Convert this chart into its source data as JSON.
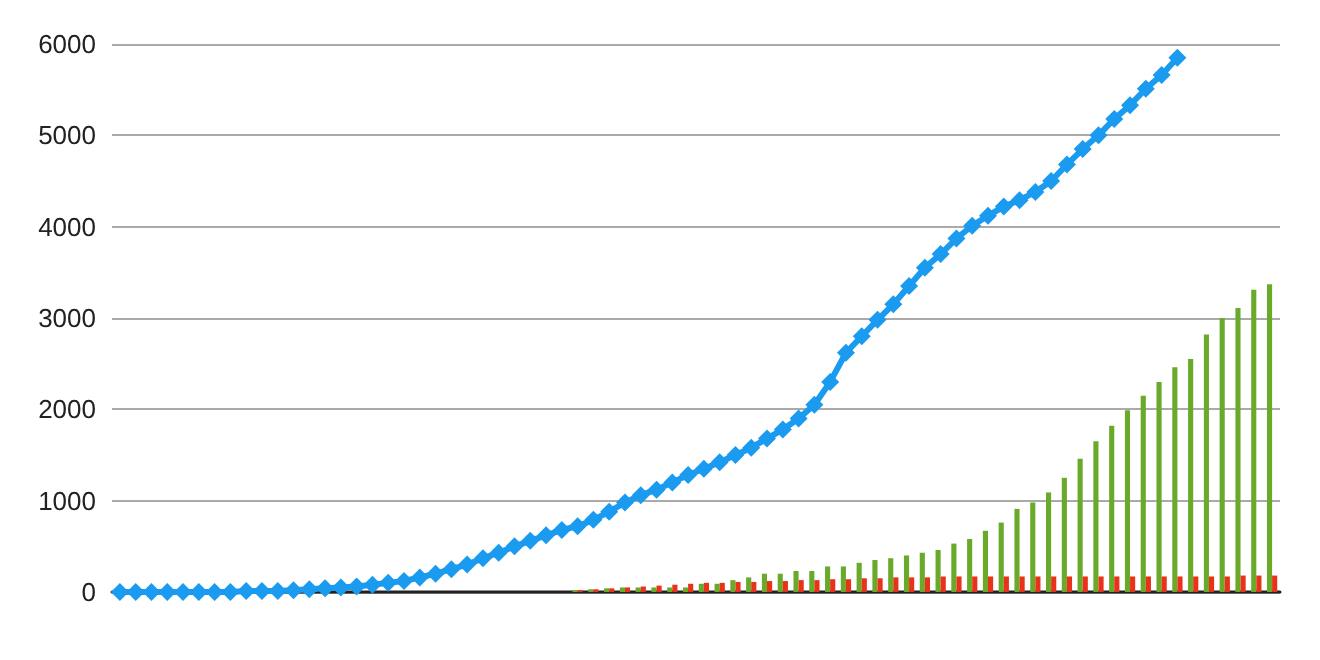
{
  "chart_data": {
    "type": "bar",
    "categories": [
      null,
      null,
      null,
      null,
      null,
      null,
      null,
      null,
      null,
      null,
      null,
      null,
      null,
      null,
      null,
      null,
      null,
      null,
      null,
      null,
      null,
      null,
      null,
      null,
      null,
      null,
      null,
      null,
      null,
      null,
      null,
      null,
      null,
      null,
      null,
      null,
      null,
      null,
      null,
      null,
      null,
      null,
      null,
      null,
      null,
      null,
      null,
      null,
      null,
      null,
      null,
      null,
      null,
      null,
      null,
      null,
      null,
      null,
      null,
      null,
      null,
      null,
      null,
      null,
      null,
      null,
      null,
      null,
      null,
      null,
      null,
      null,
      null,
      null
    ],
    "series": [
      {
        "color": "#6aaa2a",
        "values": [
          0,
          0,
          0,
          0,
          0,
          0,
          0,
          0,
          0,
          0,
          0,
          0,
          0,
          0,
          0,
          0,
          0,
          0,
          0,
          0,
          0,
          0,
          0,
          0,
          0,
          0,
          0,
          0,
          0,
          20,
          30,
          40,
          50,
          50,
          50,
          50,
          50,
          90,
          90,
          130,
          160,
          200,
          200,
          230,
          230,
          280,
          280,
          320,
          350,
          370,
          400,
          430,
          460,
          530,
          580,
          670,
          760,
          910,
          980,
          1090,
          1250,
          1460,
          1650,
          1820,
          1990,
          2150,
          2300,
          2460,
          2550,
          2820,
          3000,
          3110,
          3310,
          3370
        ]
      },
      {
        "color": "#e8321a",
        "values": [
          0,
          0,
          0,
          0,
          0,
          0,
          0,
          0,
          0,
          0,
          0,
          0,
          0,
          0,
          0,
          0,
          0,
          0,
          0,
          0,
          0,
          0,
          0,
          0,
          0,
          0,
          0,
          0,
          0,
          20,
          30,
          40,
          50,
          60,
          70,
          80,
          90,
          100,
          100,
          110,
          110,
          120,
          120,
          130,
          130,
          140,
          140,
          150,
          150,
          160,
          160,
          160,
          170,
          170,
          170,
          170,
          170,
          170,
          170,
          170,
          170,
          170,
          170,
          170,
          170,
          170,
          170,
          170,
          170,
          170,
          170,
          180,
          180,
          180
        ]
      },
      {
        "type": "line",
        "color": "#1a9bf0",
        "marker": "diamond",
        "values": [
          0,
          0,
          0,
          0,
          0,
          0,
          0,
          0,
          10,
          10,
          10,
          20,
          30,
          40,
          50,
          60,
          80,
          100,
          120,
          160,
          200,
          250,
          300,
          370,
          430,
          500,
          560,
          620,
          680,
          720,
          790,
          880,
          980,
          1060,
          1120,
          1200,
          1280,
          1350,
          1420,
          1500,
          1580,
          1680,
          1780,
          1900,
          2050,
          2300,
          2620,
          2800,
          2980,
          3150,
          3350,
          3550,
          3700,
          3870,
          4010,
          4120,
          4220,
          4290,
          4380,
          4500,
          4680,
          4850,
          5000,
          5180,
          5330,
          5510,
          5660,
          5850,
          null,
          null,
          null,
          null,
          null,
          null
        ]
      }
    ],
    "ylim": [
      0,
      6000
    ],
    "yticks": [
      0,
      1000,
      2000,
      3000,
      4000,
      5000,
      6000
    ],
    "grid": "y"
  }
}
